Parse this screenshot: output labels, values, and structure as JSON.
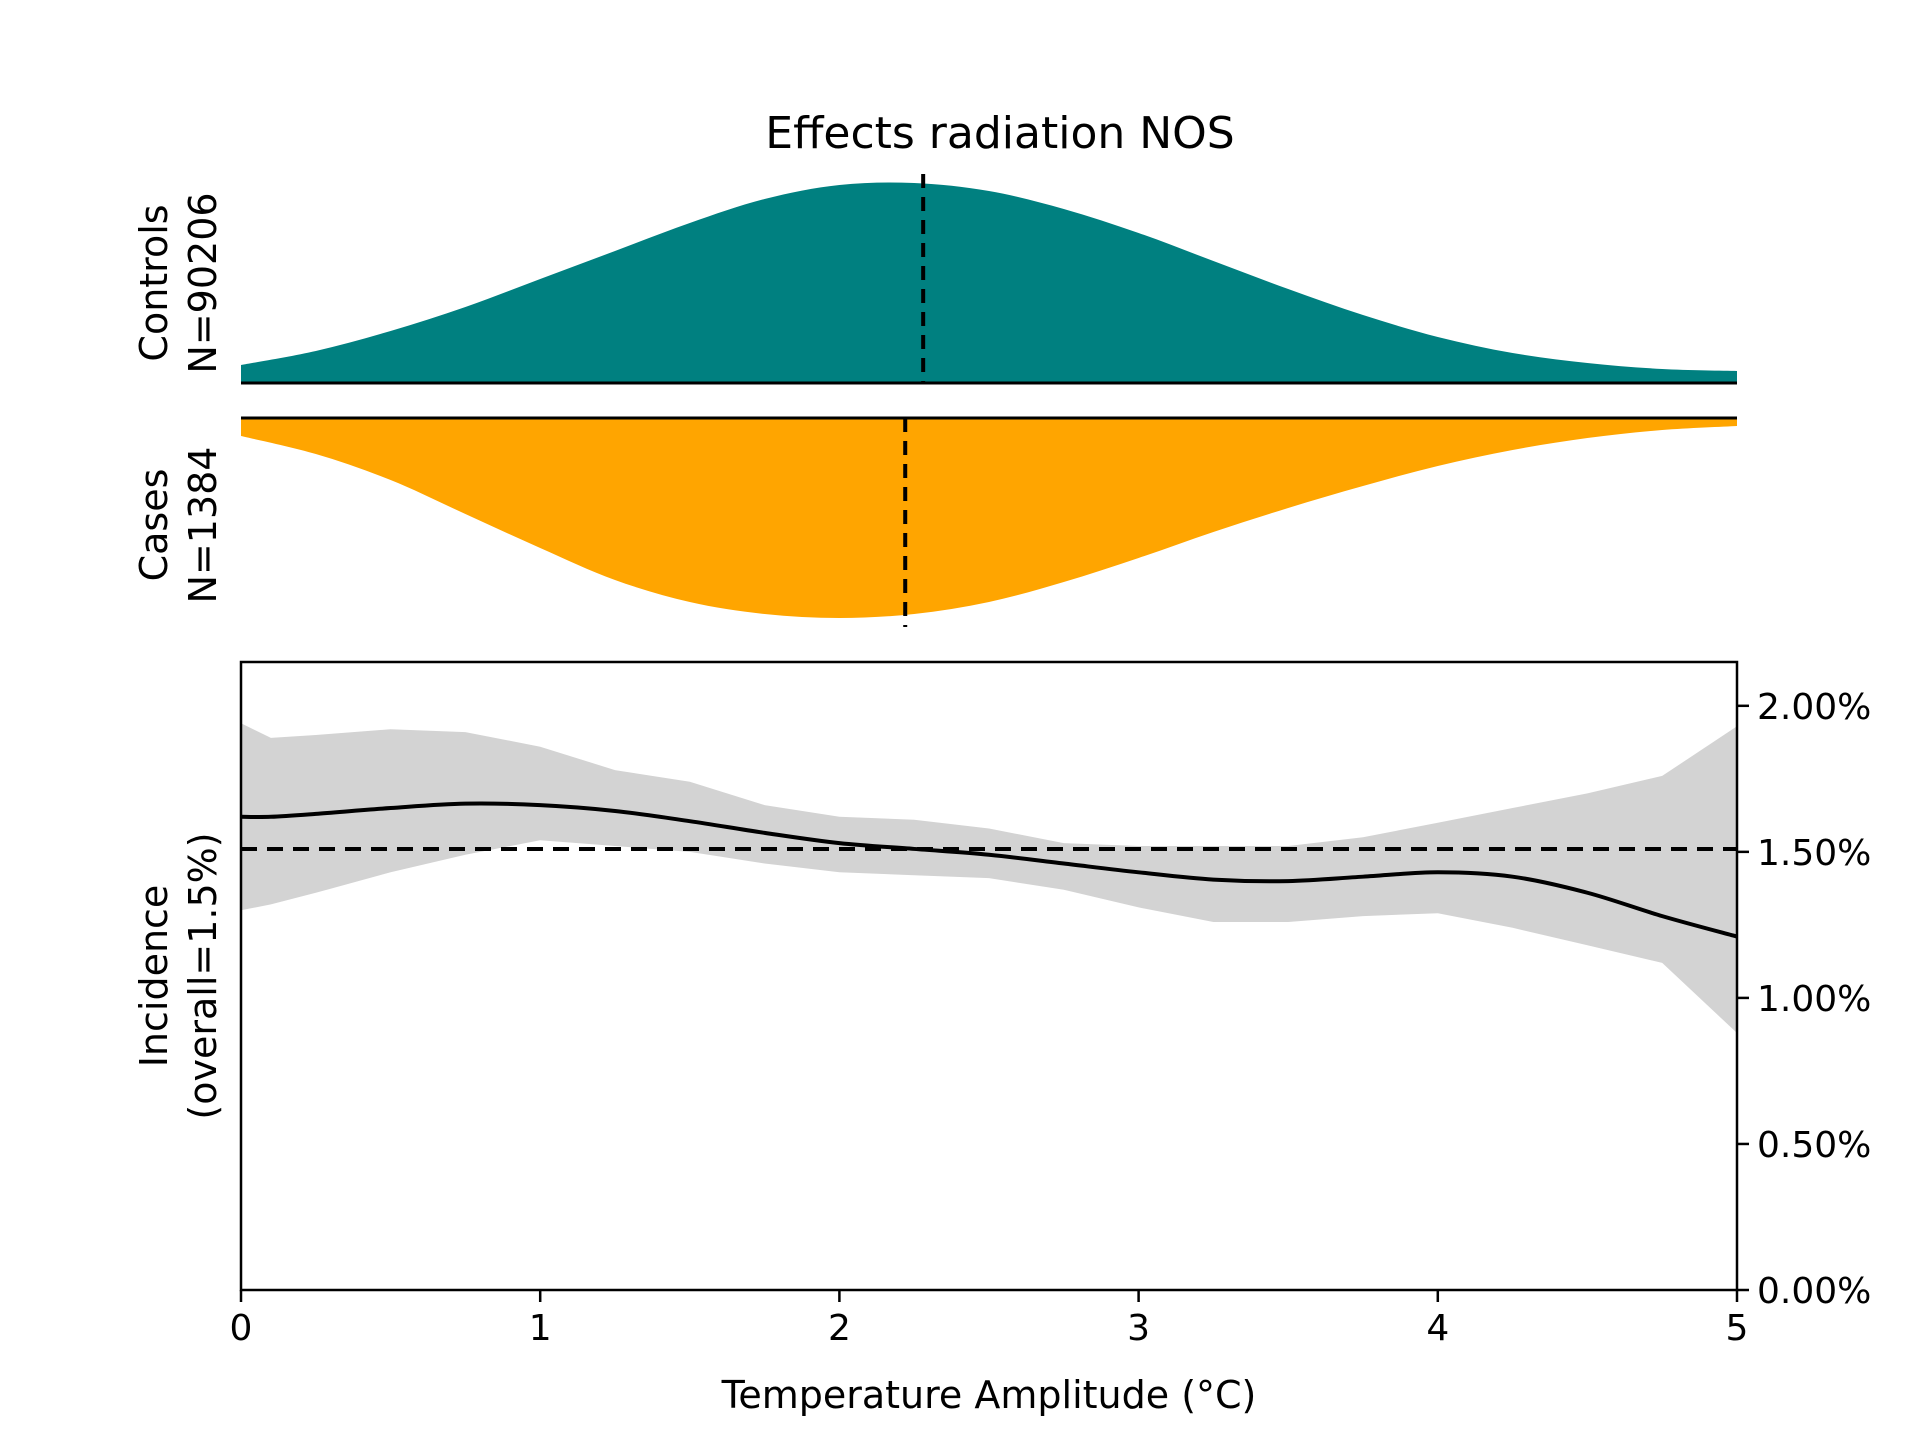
{
  "chart_data": {
    "type": "area",
    "title": "Effects radiation NOS",
    "xlabel": "Temperature Amplitude (°C)",
    "xlim": [
      0,
      5
    ],
    "x_ticks": [
      "0",
      "1",
      "2",
      "3",
      "4",
      "5"
    ],
    "colors": {
      "controls": "#008080",
      "cases": "#FFA500",
      "ci": "#d3d3d3",
      "line": "#000000"
    },
    "distributions": {
      "controls": {
        "label_line1": "Controls",
        "label_line2": "N=90206",
        "median": 2.28,
        "x": [
          0,
          0.25,
          0.5,
          0.75,
          1.0,
          1.25,
          1.5,
          1.75,
          2.0,
          2.25,
          2.5,
          2.75,
          3.0,
          3.25,
          3.5,
          3.75,
          4.0,
          4.25,
          4.5,
          4.75,
          5.0
        ],
        "density": [
          0.09,
          0.16,
          0.26,
          0.38,
          0.52,
          0.66,
          0.8,
          0.92,
          0.99,
          1.0,
          0.96,
          0.87,
          0.75,
          0.61,
          0.47,
          0.34,
          0.23,
          0.15,
          0.1,
          0.07,
          0.06
        ]
      },
      "cases": {
        "label_line1": "Cases",
        "label_line2": "N=1384",
        "median": 2.22,
        "x": [
          0,
          0.25,
          0.5,
          0.75,
          1.0,
          1.25,
          1.5,
          1.75,
          2.0,
          2.25,
          2.5,
          2.75,
          3.0,
          3.25,
          3.5,
          3.75,
          4.0,
          4.25,
          4.5,
          4.75,
          5.0
        ],
        "density": [
          0.09,
          0.18,
          0.31,
          0.48,
          0.65,
          0.81,
          0.92,
          0.98,
          1.0,
          0.98,
          0.92,
          0.82,
          0.7,
          0.57,
          0.45,
          0.34,
          0.24,
          0.16,
          0.1,
          0.06,
          0.04
        ]
      }
    },
    "incidence": {
      "ylabel_line1": "Incidence",
      "ylabel_line2": "(overall=1.5%)",
      "overall": 1.51,
      "ylim": [
        0,
        2.15
      ],
      "y_ticks": [
        0,
        0.5,
        1.0,
        1.5,
        2.0
      ],
      "y_tick_labels": [
        "0.00%",
        "0.50%",
        "1.00%",
        "1.50%",
        "2.00%"
      ],
      "x": [
        0,
        0.1,
        0.25,
        0.5,
        0.75,
        1.0,
        1.25,
        1.5,
        1.75,
        2.0,
        2.25,
        2.5,
        2.75,
        3.0,
        3.25,
        3.5,
        3.75,
        4.0,
        4.25,
        4.5,
        4.75,
        5.0
      ],
      "y": [
        1.62,
        1.62,
        1.63,
        1.65,
        1.665,
        1.66,
        1.64,
        1.605,
        1.565,
        1.53,
        1.51,
        1.49,
        1.46,
        1.43,
        1.405,
        1.4,
        1.415,
        1.43,
        1.415,
        1.36,
        1.28,
        1.21
      ],
      "upper": [
        1.94,
        1.89,
        1.9,
        1.92,
        1.91,
        1.86,
        1.78,
        1.74,
        1.66,
        1.62,
        1.61,
        1.58,
        1.53,
        1.52,
        1.52,
        1.52,
        1.55,
        1.6,
        1.65,
        1.7,
        1.76,
        1.93
      ],
      "lower": [
        1.3,
        1.32,
        1.36,
        1.43,
        1.49,
        1.54,
        1.52,
        1.5,
        1.46,
        1.43,
        1.42,
        1.41,
        1.37,
        1.31,
        1.26,
        1.26,
        1.28,
        1.29,
        1.24,
        1.18,
        1.12,
        0.88
      ]
    }
  }
}
